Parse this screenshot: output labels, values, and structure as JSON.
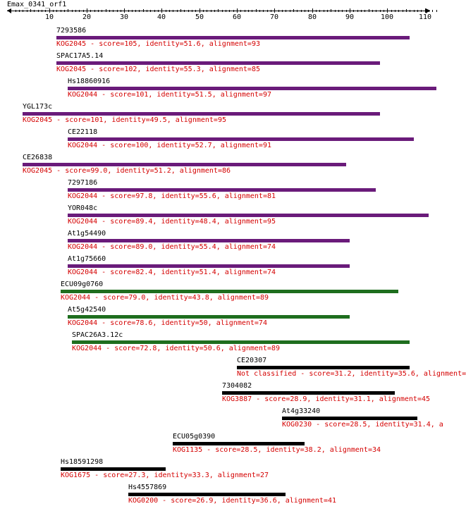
{
  "title": "Emax_0341_orf1",
  "axis": {
    "min": 1,
    "max": 113,
    "labels": [
      "10",
      "20",
      "30",
      "40",
      "50",
      "60",
      "70",
      "80",
      "90",
      "100",
      "110"
    ],
    "label_values": [
      10,
      20,
      30,
      40,
      50,
      60,
      70,
      80,
      90,
      100,
      110
    ]
  },
  "colors": {
    "purple": "#6a1b7a",
    "green": "#1e6e1e",
    "black": "#000000",
    "red": "#d40000"
  },
  "hits": [
    {
      "name": "7293586",
      "desc": "KOG2045 - score=105, identity=51.6, alignment=93",
      "start": 12,
      "end": 106,
      "color": "purple"
    },
    {
      "name": "SPAC17A5.14",
      "desc": "KOG2045 - score=102, identity=55.3, alignment=85",
      "start": 12,
      "end": 98,
      "color": "purple"
    },
    {
      "name": "Hs18860916",
      "desc": "KOG2044 - score=101, identity=51.5, alignment=97",
      "start": 15,
      "end": 113,
      "color": "purple"
    },
    {
      "name": "YGL173c",
      "desc": "KOG2045 - score=101, identity=49.5, alignment=95",
      "start": 3,
      "end": 98,
      "color": "purple"
    },
    {
      "name": "CE22118",
      "desc": "KOG2044 - score=100, identity=52.7, alignment=91",
      "start": 15,
      "end": 107,
      "color": "purple"
    },
    {
      "name": "CE26838",
      "desc": "KOG2045 - score=99.0, identity=51.2, alignment=86",
      "start": 3,
      "end": 89,
      "color": "purple"
    },
    {
      "name": "7297186",
      "desc": "KOG2044 - score=97.8, identity=55.6, alignment=81",
      "start": 15,
      "end": 97,
      "color": "purple"
    },
    {
      "name": "YOR048c",
      "desc": "KOG2044 - score=89.4, identity=48.4, alignment=95",
      "start": 15,
      "end": 111,
      "color": "purple"
    },
    {
      "name": "At1g54490",
      "desc": "KOG2044 - score=89.0, identity=55.4, alignment=74",
      "start": 15,
      "end": 90,
      "color": "purple"
    },
    {
      "name": "At1g75660",
      "desc": "KOG2044 - score=82.4, identity=51.4, alignment=74",
      "start": 15,
      "end": 90,
      "color": "purple"
    },
    {
      "name": "ECU09g0760",
      "desc": "KOG2044 - score=79.0, identity=43.8, alignment=89",
      "start": 13,
      "end": 103,
      "color": "green"
    },
    {
      "name": "At5g42540",
      "desc": "KOG2044 - score=78.6, identity=50, alignment=74",
      "start": 15,
      "end": 90,
      "color": "green"
    },
    {
      "name": "SPAC26A3.12c",
      "desc": "KOG2044 - score=72.8, identity=50.6, alignment=89",
      "start": 16,
      "end": 106,
      "color": "green"
    },
    {
      "name": "CE20307",
      "desc": "Not classified - score=31.2, identity=35.6, alignment=",
      "start": 60,
      "end": 106,
      "color": "black"
    },
    {
      "name": "7304082",
      "desc": "KOG3887 - score=28.9, identity=31.1, alignment=45",
      "start": 56,
      "end": 102,
      "color": "black"
    },
    {
      "name": "At4g33240",
      "desc": "KOG0230 - score=28.5, identity=31.4, a",
      "start": 72,
      "end": 108,
      "color": "black"
    },
    {
      "name": "ECU05g0390",
      "desc": "KOG1135 - score=28.5, identity=38.2, alignment=34",
      "start": 43,
      "end": 78,
      "color": "black"
    },
    {
      "name": "Hs18591298",
      "desc": "KOG1675 - score=27.3, identity=33.3, alignment=27",
      "start": 13,
      "end": 41,
      "color": "black"
    },
    {
      "name": "Hs4557869",
      "desc": "KOG0200 - score=26.9, identity=36.6, alignment=41",
      "start": 31,
      "end": 73,
      "color": "black"
    }
  ]
}
